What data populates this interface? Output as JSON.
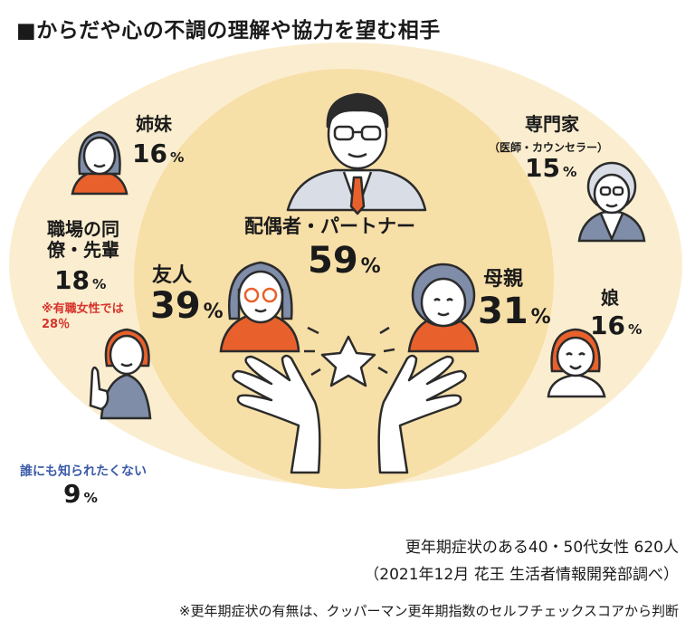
{
  "chart_data": {
    "type": "other",
    "title": "■からだや心の不調の理解や協力を望む相手",
    "items": [
      {
        "label": "配偶者・パートナー",
        "value": 59,
        "unit": "%"
      },
      {
        "label": "友人",
        "value": 39,
        "unit": "%"
      },
      {
        "label": "母親",
        "value": 31,
        "unit": "%"
      },
      {
        "label": "姉妹",
        "value": 16,
        "unit": "%"
      },
      {
        "label": "職場の同僚・先輩",
        "value": 18,
        "unit": "%",
        "note": "※有職女性では28％"
      },
      {
        "label": "専門家",
        "sublabel": "（医師・カウンセラー）",
        "value": 15,
        "unit": "%"
      },
      {
        "label": "娘",
        "value": 16,
        "unit": "%"
      },
      {
        "label": "誰にも知られたくない",
        "value": 9,
        "unit": "%"
      }
    ],
    "source_line1": "更年期症状のある40・50代女性 620人",
    "source_line2": "（2021年12月 花王 生活者情報開発部調べ）",
    "footnote": "※更年期症状の有無は、クッパーマン更年期指数のセルフチェックスコアから判断"
  },
  "colors": {
    "outer_ellipse": "#fbeed0",
    "inner_circle": "#f7dfa8",
    "line": "#2b2b2b",
    "orange": "#e8612c",
    "accent_red": "#d6342c",
    "accent_blue": "#3b5ba8",
    "hair_gray": "#7f8da8",
    "skin": "#ffffff"
  },
  "icons": [
    "man-in-suit-icon",
    "woman-glasses-icon",
    "older-woman-icon",
    "sister-icon",
    "coworker-pointing-icon",
    "doctor-icon",
    "daughter-icon",
    "star-icon",
    "open-hands-icon"
  ]
}
